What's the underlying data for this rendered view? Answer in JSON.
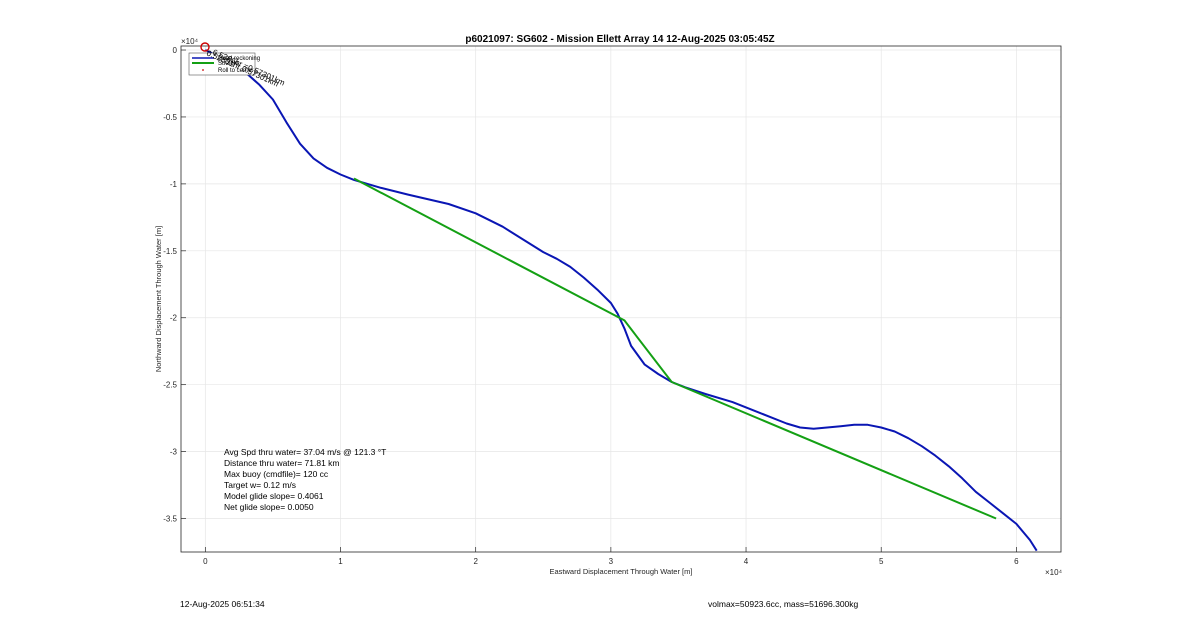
{
  "chart_data": {
    "type": "line",
    "title": "p6021097: SG602 - Mission Ellett Array 14 12-Aug-2025 03:05:45Z",
    "xlabel": "Eastward Displacement Through Water [m]",
    "ylabel": "Northward Displacement Through Water [m]",
    "xlim": [
      -0.18,
      6.33
    ],
    "ylim": [
      -3.75,
      0.03
    ],
    "x_exponent": "×10⁴",
    "y_exponent": "×10⁴",
    "x_ticks": [
      "0",
      "1",
      "2",
      "3",
      "4",
      "5",
      "6"
    ],
    "y_ticks": [
      "0",
      "-0.5",
      "-1",
      "-1.5",
      "-2",
      "-2.5",
      "-3",
      "-3.5"
    ],
    "grid": true,
    "legend": {
      "placement": "top-left",
      "entries": [
        "Dead reckoning",
        "Straight",
        "Roll to center"
      ]
    },
    "series": [
      {
        "color": "#0a16b4",
        "x": [
          0,
          0.1,
          0.2,
          0.3,
          0.4,
          0.5,
          0.6,
          0.7,
          0.8,
          0.9,
          1.0,
          1.1,
          1.3,
          1.5,
          1.8,
          2.0,
          2.2,
          2.5,
          2.6,
          2.7,
          2.8,
          2.9,
          3.0,
          3.05,
          3.1,
          3.15,
          3.25,
          3.35,
          3.45,
          3.55,
          3.7,
          3.9,
          4.1,
          4.3,
          4.4,
          4.5,
          4.6,
          4.7,
          4.8,
          4.9,
          5.0,
          5.1,
          5.2,
          5.3,
          5.4,
          5.5,
          5.6,
          5.7,
          5.8,
          5.9,
          6.0,
          6.1,
          6.15
        ],
        "y": [
          0,
          -0.05,
          -0.1,
          -0.17,
          -0.26,
          -0.37,
          -0.54,
          -0.7,
          -0.81,
          -0.88,
          -0.93,
          -0.97,
          -1.03,
          -1.08,
          -1.15,
          -1.22,
          -1.32,
          -1.51,
          -1.56,
          -1.62,
          -1.7,
          -1.79,
          -1.89,
          -1.97,
          -2.08,
          -2.21,
          -2.35,
          -2.42,
          -2.48,
          -2.52,
          -2.57,
          -2.63,
          -2.71,
          -2.79,
          -2.82,
          -2.83,
          -2.82,
          -2.81,
          -2.8,
          -2.8,
          -2.82,
          -2.85,
          -2.9,
          -2.96,
          -3.03,
          -3.11,
          -3.2,
          -3.3,
          -3.38,
          -3.46,
          -3.54,
          -3.66,
          -3.74
        ]
      },
      {
        "color": "#14a014",
        "x": [
          1.1,
          3.1,
          3.45,
          5.85
        ],
        "y": [
          -0.96,
          -2.02,
          -2.48,
          -3.5
        ]
      }
    ],
    "annotations": [
      "0.52801hr 0.57301km",
      "6.5386hr =0.57301km"
    ]
  },
  "stats": {
    "line1": "Avg Spd thru water= 37.04 m/s @ 121.3 °T",
    "line2": "Distance thru water= 71.81 km",
    "line3": "Max buoy (cmdfile)= 120 cc",
    "line4": "Target w= 0.12 m/s",
    "line5": "Model glide slope= 0.4061",
    "line6": "Net glide slope= 0.0050"
  },
  "footer": {
    "date": "12-Aug-2025 06:51:34",
    "volmax": "volmax=50923.6cc, mass=51696.300kg"
  }
}
